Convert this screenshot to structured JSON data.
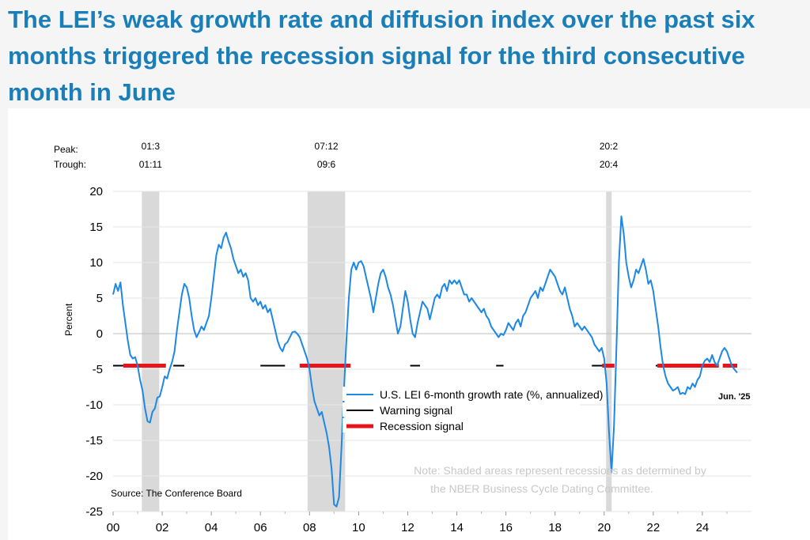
{
  "headline": "The LEI’s weak growth rate and diffusion index over the past six months triggered the recession signal for the third consecutive month in June",
  "chart_data": {
    "type": "line",
    "ylabel": "Percent",
    "ylim": [
      -25,
      20
    ],
    "yticks": [
      "20",
      "15",
      "10",
      "5",
      "0",
      "-5",
      "-10",
      "-15",
      "-20",
      "-25"
    ],
    "xlim": [
      2000.0,
      2026.0
    ],
    "xticks": [
      "00",
      "02",
      "04",
      "06",
      "08",
      "10",
      "12",
      "14",
      "16",
      "18",
      "20",
      "22",
      "24"
    ],
    "grid": "horizontal",
    "legend_placement": "lower-right",
    "peak_label": "Peak:",
    "trough_label": "Trough:",
    "recessions": [
      {
        "peak": "01:3",
        "trough": "01:11",
        "start": 2001.17,
        "end": 2001.88
      },
      {
        "peak": "07:12",
        "trough": "09:6",
        "start": 2007.92,
        "end": 2009.45
      },
      {
        "peak": "20:2",
        "trough": "20:4",
        "start": 2020.08,
        "end": 2020.29
      }
    ],
    "series": [
      {
        "name": "U.S. LEI 6-month growth rate (%, annualized)",
        "color": "#1e88e5",
        "points": [
          [
            2000.0,
            5.5
          ],
          [
            2000.1,
            7.0
          ],
          [
            2000.2,
            6.0
          ],
          [
            2000.3,
            7.2
          ],
          [
            2000.4,
            4.0
          ],
          [
            2000.5,
            1.5
          ],
          [
            2000.6,
            -1.0
          ],
          [
            2000.7,
            -3.0
          ],
          [
            2000.8,
            -3.5
          ],
          [
            2000.9,
            -3.3
          ],
          [
            2001.0,
            -4.5
          ],
          [
            2001.1,
            -6.5
          ],
          [
            2001.2,
            -8.0
          ],
          [
            2001.3,
            -10.5
          ],
          [
            2001.4,
            -12.3
          ],
          [
            2001.5,
            -12.5
          ],
          [
            2001.6,
            -11.0
          ],
          [
            2001.7,
            -10.5
          ],
          [
            2001.8,
            -9.0
          ],
          [
            2001.9,
            -8.8
          ],
          [
            2002.0,
            -7.5
          ],
          [
            2002.1,
            -6.0
          ],
          [
            2002.2,
            -6.3
          ],
          [
            2002.3,
            -5.0
          ],
          [
            2002.4,
            -4.0
          ],
          [
            2002.5,
            -2.5
          ],
          [
            2002.6,
            0.5
          ],
          [
            2002.7,
            3.0
          ],
          [
            2002.8,
            5.5
          ],
          [
            2002.9,
            7.0
          ],
          [
            2003.0,
            6.5
          ],
          [
            2003.1,
            5.0
          ],
          [
            2003.2,
            2.5
          ],
          [
            2003.3,
            0.5
          ],
          [
            2003.4,
            -0.5
          ],
          [
            2003.5,
            0.2
          ],
          [
            2003.6,
            1.0
          ],
          [
            2003.7,
            0.5
          ],
          [
            2003.8,
            1.5
          ],
          [
            2003.9,
            2.5
          ],
          [
            2004.0,
            5.0
          ],
          [
            2004.1,
            8.0
          ],
          [
            2004.2,
            11.0
          ],
          [
            2004.3,
            12.5
          ],
          [
            2004.4,
            12.0
          ],
          [
            2004.5,
            13.5
          ],
          [
            2004.6,
            14.2
          ],
          [
            2004.7,
            13.0
          ],
          [
            2004.8,
            12.0
          ],
          [
            2004.9,
            10.5
          ],
          [
            2005.0,
            9.5
          ],
          [
            2005.1,
            8.5
          ],
          [
            2005.2,
            9.0
          ],
          [
            2005.3,
            8.0
          ],
          [
            2005.4,
            8.5
          ],
          [
            2005.5,
            7.5
          ],
          [
            2005.6,
            5.0
          ],
          [
            2005.7,
            4.5
          ],
          [
            2005.8,
            5.0
          ],
          [
            2005.9,
            4.0
          ],
          [
            2006.0,
            4.5
          ],
          [
            2006.1,
            3.5
          ],
          [
            2006.2,
            4.0
          ],
          [
            2006.3,
            3.0
          ],
          [
            2006.4,
            3.5
          ],
          [
            2006.5,
            2.0
          ],
          [
            2006.6,
            0.5
          ],
          [
            2006.7,
            -1.0
          ],
          [
            2006.8,
            -2.0
          ],
          [
            2006.9,
            -2.5
          ],
          [
            2007.0,
            -1.5
          ],
          [
            2007.1,
            -1.2
          ],
          [
            2007.2,
            -0.5
          ],
          [
            2007.3,
            0.2
          ],
          [
            2007.4,
            0.3
          ],
          [
            2007.5,
            0.0
          ],
          [
            2007.6,
            -0.5
          ],
          [
            2007.7,
            -1.5
          ],
          [
            2007.8,
            -2.5
          ],
          [
            2007.9,
            -3.5
          ],
          [
            2008.0,
            -5.0
          ],
          [
            2008.1,
            -7.5
          ],
          [
            2008.2,
            -9.5
          ],
          [
            2008.3,
            -10.5
          ],
          [
            2008.4,
            -11.5
          ],
          [
            2008.5,
            -11.0
          ],
          [
            2008.6,
            -12.5
          ],
          [
            2008.7,
            -14.0
          ],
          [
            2008.8,
            -16.0
          ],
          [
            2008.9,
            -19.0
          ],
          [
            2009.0,
            -24.0
          ],
          [
            2009.1,
            -24.3
          ],
          [
            2009.2,
            -23.0
          ],
          [
            2009.3,
            -16.0
          ],
          [
            2009.4,
            -8.0
          ],
          [
            2009.5,
            -1.0
          ],
          [
            2009.6,
            5.0
          ],
          [
            2009.7,
            9.0
          ],
          [
            2009.8,
            10.0
          ],
          [
            2009.9,
            9.0
          ],
          [
            2010.0,
            10.0
          ],
          [
            2010.1,
            10.2
          ],
          [
            2010.2,
            9.5
          ],
          [
            2010.3,
            8.0
          ],
          [
            2010.4,
            6.5
          ],
          [
            2010.5,
            5.0
          ],
          [
            2010.6,
            3.0
          ],
          [
            2010.7,
            5.0
          ],
          [
            2010.8,
            7.0
          ],
          [
            2010.9,
            8.5
          ],
          [
            2011.0,
            9.0
          ],
          [
            2011.1,
            8.0
          ],
          [
            2011.2,
            6.5
          ],
          [
            2011.3,
            5.5
          ],
          [
            2011.4,
            4.0
          ],
          [
            2011.5,
            2.0
          ],
          [
            2011.6,
            0.0
          ],
          [
            2011.7,
            1.0
          ],
          [
            2011.8,
            3.5
          ],
          [
            2011.9,
            6.0
          ],
          [
            2012.0,
            4.5
          ],
          [
            2012.1,
            2.0
          ],
          [
            2012.2,
            0.0
          ],
          [
            2012.3,
            -0.5
          ],
          [
            2012.4,
            1.5
          ],
          [
            2012.5,
            3.0
          ],
          [
            2012.6,
            4.5
          ],
          [
            2012.7,
            4.0
          ],
          [
            2012.8,
            3.5
          ],
          [
            2012.9,
            2.0
          ],
          [
            2013.0,
            3.5
          ],
          [
            2013.1,
            5.0
          ],
          [
            2013.2,
            5.5
          ],
          [
            2013.3,
            5.0
          ],
          [
            2013.4,
            6.5
          ],
          [
            2013.5,
            7.0
          ],
          [
            2013.6,
            6.0
          ],
          [
            2013.7,
            7.5
          ],
          [
            2013.8,
            7.0
          ],
          [
            2013.9,
            7.5
          ],
          [
            2014.0,
            7.0
          ],
          [
            2014.1,
            7.5
          ],
          [
            2014.2,
            6.5
          ],
          [
            2014.3,
            5.5
          ],
          [
            2014.4,
            5.5
          ],
          [
            2014.5,
            4.5
          ],
          [
            2014.6,
            5.0
          ],
          [
            2014.7,
            4.5
          ],
          [
            2014.8,
            4.0
          ],
          [
            2014.9,
            3.5
          ],
          [
            2015.0,
            3.0
          ],
          [
            2015.1,
            3.5
          ],
          [
            2015.2,
            2.5
          ],
          [
            2015.3,
            2.0
          ],
          [
            2015.4,
            1.0
          ],
          [
            2015.5,
            0.5
          ],
          [
            2015.6,
            0.0
          ],
          [
            2015.7,
            -0.5
          ],
          [
            2015.8,
            0.0
          ],
          [
            2015.9,
            -0.2
          ],
          [
            2016.0,
            0.5
          ],
          [
            2016.1,
            1.5
          ],
          [
            2016.2,
            1.0
          ],
          [
            2016.3,
            0.5
          ],
          [
            2016.4,
            1.5
          ],
          [
            2016.5,
            2.0
          ],
          [
            2016.6,
            1.0
          ],
          [
            2016.7,
            2.5
          ],
          [
            2016.8,
            3.0
          ],
          [
            2016.9,
            4.0
          ],
          [
            2017.0,
            5.0
          ],
          [
            2017.1,
            5.5
          ],
          [
            2017.2,
            6.0
          ],
          [
            2017.3,
            5.0
          ],
          [
            2017.4,
            6.5
          ],
          [
            2017.5,
            6.0
          ],
          [
            2017.6,
            7.0
          ],
          [
            2017.7,
            8.0
          ],
          [
            2017.8,
            9.0
          ],
          [
            2017.9,
            8.5
          ],
          [
            2018.0,
            8.0
          ],
          [
            2018.1,
            7.0
          ],
          [
            2018.2,
            6.0
          ],
          [
            2018.3,
            5.5
          ],
          [
            2018.4,
            6.5
          ],
          [
            2018.5,
            5.0
          ],
          [
            2018.6,
            3.5
          ],
          [
            2018.7,
            2.5
          ],
          [
            2018.8,
            1.0
          ],
          [
            2018.9,
            1.5
          ],
          [
            2019.0,
            1.0
          ],
          [
            2019.1,
            0.5
          ],
          [
            2019.2,
            1.0
          ],
          [
            2019.3,
            0.5
          ],
          [
            2019.4,
            0.0
          ],
          [
            2019.5,
            -0.5
          ],
          [
            2019.6,
            -1.5
          ],
          [
            2019.7,
            -2.0
          ],
          [
            2019.8,
            -2.5
          ],
          [
            2019.9,
            -2.0
          ],
          [
            2020.0,
            -3.5
          ],
          [
            2020.1,
            -7.0
          ],
          [
            2020.2,
            -14.0
          ],
          [
            2020.3,
            -19.5
          ],
          [
            2020.4,
            -13.0
          ],
          [
            2020.5,
            -2.0
          ],
          [
            2020.6,
            10.0
          ],
          [
            2020.7,
            16.5
          ],
          [
            2020.8,
            14.0
          ],
          [
            2020.9,
            10.0
          ],
          [
            2021.0,
            8.0
          ],
          [
            2021.1,
            6.5
          ],
          [
            2021.2,
            7.5
          ],
          [
            2021.3,
            9.0
          ],
          [
            2021.4,
            8.5
          ],
          [
            2021.5,
            9.5
          ],
          [
            2021.6,
            10.5
          ],
          [
            2021.7,
            9.0
          ],
          [
            2021.8,
            7.0
          ],
          [
            2021.9,
            7.5
          ],
          [
            2022.0,
            6.0
          ],
          [
            2022.1,
            3.5
          ],
          [
            2022.2,
            1.0
          ],
          [
            2022.3,
            -2.0
          ],
          [
            2022.4,
            -4.5
          ],
          [
            2022.5,
            -6.0
          ],
          [
            2022.6,
            -7.0
          ],
          [
            2022.7,
            -7.5
          ],
          [
            2022.8,
            -8.0
          ],
          [
            2022.9,
            -7.8
          ],
          [
            2023.0,
            -7.5
          ],
          [
            2023.1,
            -8.5
          ],
          [
            2023.2,
            -8.3
          ],
          [
            2023.3,
            -8.5
          ],
          [
            2023.4,
            -7.5
          ],
          [
            2023.5,
            -7.8
          ],
          [
            2023.6,
            -7.0
          ],
          [
            2023.7,
            -7.5
          ],
          [
            2023.8,
            -6.5
          ],
          [
            2023.9,
            -6.0
          ],
          [
            2024.0,
            -4.5
          ],
          [
            2024.1,
            -3.8
          ],
          [
            2024.2,
            -3.5
          ],
          [
            2024.3,
            -4.0
          ],
          [
            2024.4,
            -3.0
          ],
          [
            2024.5,
            -4.0
          ],
          [
            2024.6,
            -4.5
          ],
          [
            2024.7,
            -3.5
          ],
          [
            2024.8,
            -2.5
          ],
          [
            2024.9,
            -2.0
          ],
          [
            2025.0,
            -2.5
          ],
          [
            2025.1,
            -3.5
          ],
          [
            2025.2,
            -4.5
          ],
          [
            2025.3,
            -5.0
          ],
          [
            2025.42,
            -5.5
          ]
        ]
      },
      {
        "name": "Warning signal",
        "color": "#000000",
        "segments": [
          [
            2000.0,
            2001.17
          ],
          [
            2002.45,
            2002.9
          ],
          [
            2006.0,
            2007.0
          ],
          [
            2007.6,
            2007.92
          ],
          [
            2012.1,
            2012.5
          ],
          [
            2015.6,
            2015.9
          ],
          [
            2019.5,
            2020.08
          ],
          [
            2022.1,
            2024.0
          ]
        ]
      },
      {
        "name": "Recession signal",
        "color": "#e8141b",
        "segments": [
          [
            2000.42,
            2002.15
          ],
          [
            2007.6,
            2009.67
          ],
          [
            2019.92,
            2020.42
          ],
          [
            2022.17,
            2024.67
          ],
          [
            2024.83,
            2025.42
          ]
        ]
      }
    ],
    "end_label": "Jun. '25",
    "source": "Source: The Conference Board",
    "note_lines": [
      "Note: Shaded areas represent recessions as determined by",
      "the NBER Business Cycle Dating Committee."
    ]
  }
}
